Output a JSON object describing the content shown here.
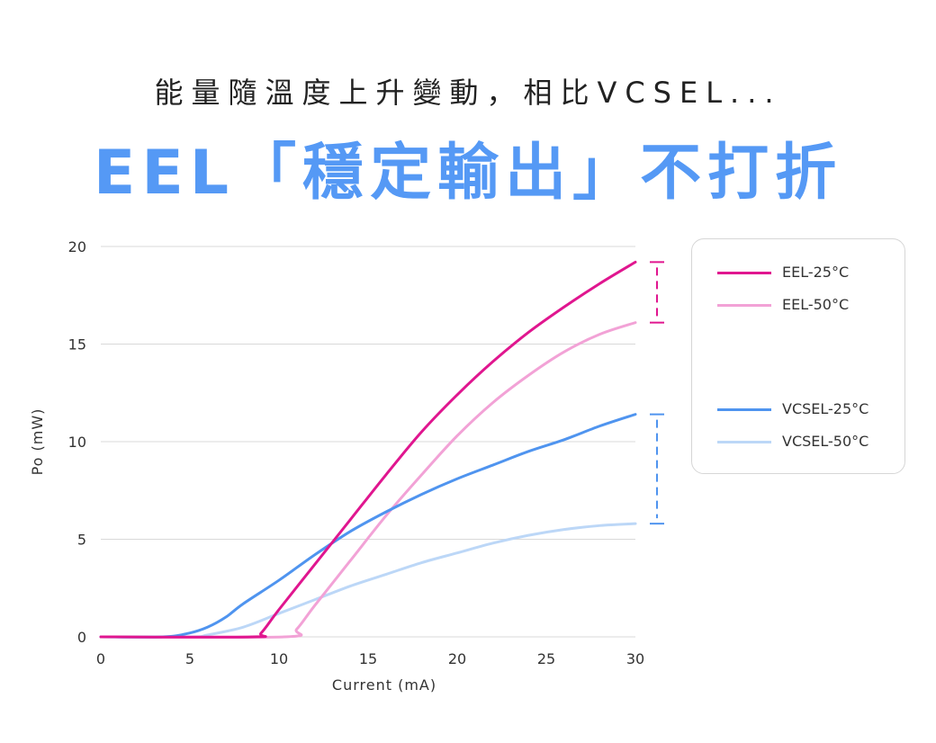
{
  "header": {
    "subtitle": "能量隨溫度上升變動，相比VCSEL...",
    "title": "EEL「穩定輸出」不打折"
  },
  "colors": {
    "title": "#5599f5",
    "eel_25": "#e0168f",
    "eel_50": "#f2a2d6",
    "vcsel_25": "#4f94ef",
    "vcsel_50": "#bcd7f7",
    "grid": "#d9d9d9",
    "axis_text": "#333333"
  },
  "chart_data": {
    "type": "line",
    "title": "",
    "xlabel": "Current (mA)",
    "ylabel": "Po (mW)",
    "xlim": [
      0,
      30
    ],
    "ylim": [
      0,
      20
    ],
    "xticks": [
      0,
      5,
      10,
      15,
      20,
      25,
      30
    ],
    "yticks": [
      0,
      5,
      10,
      15,
      20
    ],
    "grid": "horizontal",
    "legend_position": "right",
    "series": [
      {
        "name": "EEL-25°C",
        "color_key": "eel_25",
        "points": [
          [
            0,
            0
          ],
          [
            8.5,
            0
          ],
          [
            9,
            0.2
          ],
          [
            10,
            1.4
          ],
          [
            12,
            3.7
          ],
          [
            14,
            6.0
          ],
          [
            16,
            8.3
          ],
          [
            18,
            10.5
          ],
          [
            20,
            12.4
          ],
          [
            22,
            14.1
          ],
          [
            24,
            15.6
          ],
          [
            26,
            16.9
          ],
          [
            28,
            18.1
          ],
          [
            30,
            19.2
          ]
        ]
      },
      {
        "name": "EEL-50°C",
        "color_key": "eel_50",
        "points": [
          [
            0,
            0
          ],
          [
            10.3,
            0
          ],
          [
            11,
            0.4
          ],
          [
            12,
            1.6
          ],
          [
            14,
            3.9
          ],
          [
            16,
            6.2
          ],
          [
            18,
            8.3
          ],
          [
            20,
            10.3
          ],
          [
            22,
            12.0
          ],
          [
            24,
            13.4
          ],
          [
            26,
            14.6
          ],
          [
            28,
            15.5
          ],
          [
            30,
            16.1
          ]
        ]
      },
      {
        "name": "VCSEL-25°C",
        "color_key": "vcsel_25",
        "points": [
          [
            0,
            0
          ],
          [
            3.5,
            0
          ],
          [
            5,
            0.2
          ],
          [
            6,
            0.5
          ],
          [
            7,
            1.0
          ],
          [
            8,
            1.7
          ],
          [
            10,
            2.9
          ],
          [
            12,
            4.2
          ],
          [
            14,
            5.4
          ],
          [
            16,
            6.4
          ],
          [
            18,
            7.3
          ],
          [
            20,
            8.1
          ],
          [
            22,
            8.8
          ],
          [
            24,
            9.5
          ],
          [
            26,
            10.1
          ],
          [
            28,
            10.8
          ],
          [
            30,
            11.4
          ]
        ]
      },
      {
        "name": "VCSEL-50°C",
        "color_key": "vcsel_50",
        "points": [
          [
            0,
            0
          ],
          [
            5,
            0
          ],
          [
            6,
            0.1
          ],
          [
            8,
            0.5
          ],
          [
            10,
            1.2
          ],
          [
            12,
            1.9
          ],
          [
            14,
            2.6
          ],
          [
            16,
            3.2
          ],
          [
            18,
            3.8
          ],
          [
            20,
            4.3
          ],
          [
            22,
            4.8
          ],
          [
            24,
            5.2
          ],
          [
            26,
            5.5
          ],
          [
            28,
            5.7
          ],
          [
            30,
            5.8
          ]
        ]
      }
    ],
    "annotations": [
      {
        "type": "range-bracket",
        "x": 30,
        "from": 16.1,
        "to": 19.2,
        "color_key": "eel_25"
      },
      {
        "type": "range-bracket",
        "x": 30,
        "from": 5.8,
        "to": 11.4,
        "color_key": "vcsel_25"
      }
    ]
  },
  "legend": {
    "items": [
      {
        "label": "EEL-25°C",
        "color_key": "eel_25"
      },
      {
        "label": "EEL-50°C",
        "color_key": "eel_50"
      },
      {
        "label": "VCSEL-25°C",
        "color_key": "vcsel_25"
      },
      {
        "label": "VCSEL-50°C",
        "color_key": "vcsel_50"
      }
    ]
  }
}
